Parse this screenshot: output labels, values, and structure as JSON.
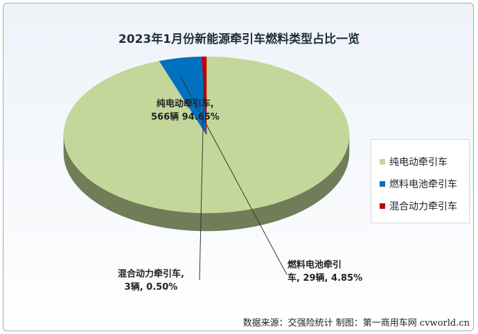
{
  "chart_data": {
    "type": "pie",
    "title": "2023年1月份新能源牵引车燃料类型占比一览",
    "slices": [
      {
        "name": "纯电动牵引车",
        "label_line1": "纯电动牵引车,",
        "label_line2": "566辆 94.65%",
        "units": 566,
        "percent": 94.65,
        "color": "#c4d79b"
      },
      {
        "name": "燃料电池牵引车",
        "label_line1": "燃料电池牵引",
        "label_line2": "车, 29辆, 4.85%",
        "units": 29,
        "percent": 4.85,
        "color": "#0070c0"
      },
      {
        "name": "混合动力牵引车",
        "label_line1": "混合动力牵引车,",
        "label_line2": "3辆, 0.50%",
        "units": 3,
        "percent": 0.5,
        "color": "#c00000"
      }
    ],
    "legend_position": "right"
  },
  "source": "数据来源：交强险统计  制图：第一商用车网 cvworld.cn"
}
